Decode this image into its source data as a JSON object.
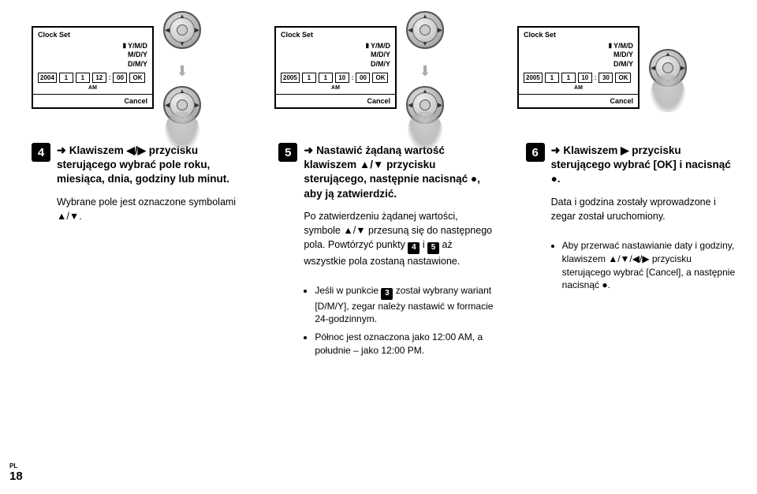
{
  "panels": [
    {
      "title": "Clock Set",
      "formats": [
        "Y/M/D",
        "M/D/Y",
        "D/M/Y"
      ],
      "year": "2004",
      "m": "1",
      "d": "1",
      "h": "12",
      "mm": "00",
      "ok": "OK",
      "ampm": "AM",
      "cancel": "Cancel",
      "thumbs": [
        true,
        true
      ]
    },
    {
      "title": "Clock Set",
      "formats": [
        "Y/M/D",
        "M/D/Y",
        "D/M/Y"
      ],
      "year": "2005",
      "m": "1",
      "d": "1",
      "h": "10",
      "mm": "00",
      "ok": "OK",
      "ampm": "AM",
      "cancel": "Cancel",
      "thumbs": [
        true,
        true
      ]
    },
    {
      "title": "Clock Set",
      "formats": [
        "Y/M/D",
        "M/D/Y",
        "D/M/Y"
      ],
      "year": "2005",
      "m": "1",
      "d": "1",
      "h": "10",
      "mm": "30",
      "ok": "OK",
      "ampm": "AM",
      "cancel": "Cancel",
      "thumbs": [
        false,
        true
      ]
    }
  ],
  "steps": {
    "s4": {
      "num": "4",
      "lead": "Klawiszem ◀/▶ przycisku sterującego wybrać pole roku, miesiąca, dnia, godziny lub minut.",
      "sub": "Wybrane pole jest oznaczone symbolami ▲/▼."
    },
    "s5": {
      "num": "5",
      "lead": "Nastawić żądaną wartość klawiszem ▲/▼ przycisku sterującego, następnie nacisnąć ●, aby ją zatwierdzić.",
      "p1a": "Po zatwierdzeniu żądanej wartości, symbole ▲/▼ przesuną się do następnego pola. Powtórzyć punkty ",
      "b4": "4",
      "p1b": " i ",
      "b5": "5",
      "p1c": " aż wszystkie pola zostaną nastawione.",
      "n1a": "Jeśli w punkcie ",
      "b3": "3",
      "n1b": " został wybrany wariant [D/M/Y], zegar należy nastawić w formacie 24-godzinnym.",
      "n2": "Północ jest oznaczona jako 12:00 AM, a południe – jako 12:00 PM."
    },
    "s6": {
      "num": "6",
      "lead": "Klawiszem ▶ przycisku sterującego wybrać [OK] i nacisnąć ●.",
      "p1": "Data i godzina zostały wprowadzone i zegar został uruchomiony.",
      "n1": "Aby przerwać nastawianie daty i godziny, klawiszem ▲/▼/◀/▶ przycisku sterującego wybrać [Cancel], a następnie nacisnąć ●."
    }
  },
  "footer": {
    "lang": "PL",
    "page": "18"
  }
}
